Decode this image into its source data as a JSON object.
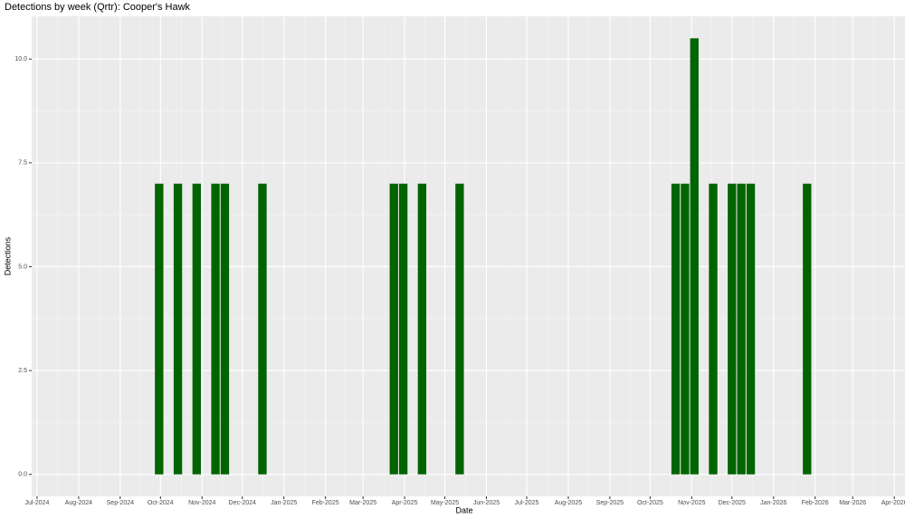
{
  "chart_data": {
    "type": "bar",
    "title": "Detections by week (Qrtr): Cooper's Hawk",
    "x_label": "Date",
    "y_label": "Detections",
    "x": [
      "2024-09-30",
      "2024-10-14",
      "2024-10-28",
      "2024-11-11",
      "2024-11-18",
      "2024-12-16",
      "2025-03-24",
      "2025-03-31",
      "2025-04-14",
      "2025-05-12",
      "2025-10-20",
      "2025-10-27",
      "2025-11-03",
      "2025-11-17",
      "2025-12-01",
      "2025-12-08",
      "2025-12-15",
      "2026-01-26"
    ],
    "values": [
      7,
      7,
      7,
      7,
      7,
      7,
      7,
      7,
      7,
      7,
      7,
      7,
      10.5,
      7,
      7,
      7,
      7,
      7
    ],
    "color": "#006400",
    "xlim": [
      "2024-06-27",
      "2026-04-09"
    ],
    "xticks": [
      {
        "value": "2024-07",
        "label": "Jul-2024"
      },
      {
        "value": "2024-08",
        "label": "Aug-2024"
      },
      {
        "value": "2024-09",
        "label": "Sep-2024"
      },
      {
        "value": "2024-10",
        "label": "Oct-2024"
      },
      {
        "value": "2024-11",
        "label": "Nov-2024"
      },
      {
        "value": "2024-12",
        "label": "Dec-2024"
      },
      {
        "value": "2025-01",
        "label": "Jan-2025"
      },
      {
        "value": "2025-02",
        "label": "Feb-2025"
      },
      {
        "value": "2025-03",
        "label": "Mar-2025"
      },
      {
        "value": "2025-04",
        "label": "Apr-2025"
      },
      {
        "value": "2025-05",
        "label": "May-2025"
      },
      {
        "value": "2025-06",
        "label": "Jun-2025"
      },
      {
        "value": "2025-07",
        "label": "Jul-2025"
      },
      {
        "value": "2025-08",
        "label": "Aug-2025"
      },
      {
        "value": "2025-09",
        "label": "Sep-2025"
      },
      {
        "value": "2025-10",
        "label": "Oct-2025"
      },
      {
        "value": "2025-11",
        "label": "Nov-2025"
      },
      {
        "value": "2025-12",
        "label": "Dec-2025"
      },
      {
        "value": "2026-01",
        "label": "Jan-2026"
      },
      {
        "value": "2026-02",
        "label": "Feb-2026"
      },
      {
        "value": "2026-03",
        "label": "Mar-2026"
      },
      {
        "value": "2026-04",
        "label": "Apr-2026"
      }
    ],
    "ylim": [
      -0.53,
      11.03
    ],
    "yticks": [
      {
        "value": 0,
        "label": "0.0"
      },
      {
        "value": 2.5,
        "label": "2.5"
      },
      {
        "value": 5,
        "label": "5.0"
      },
      {
        "value": 7.5,
        "label": "7.5"
      },
      {
        "value": 10,
        "label": "10.0"
      }
    ],
    "grid": true
  }
}
